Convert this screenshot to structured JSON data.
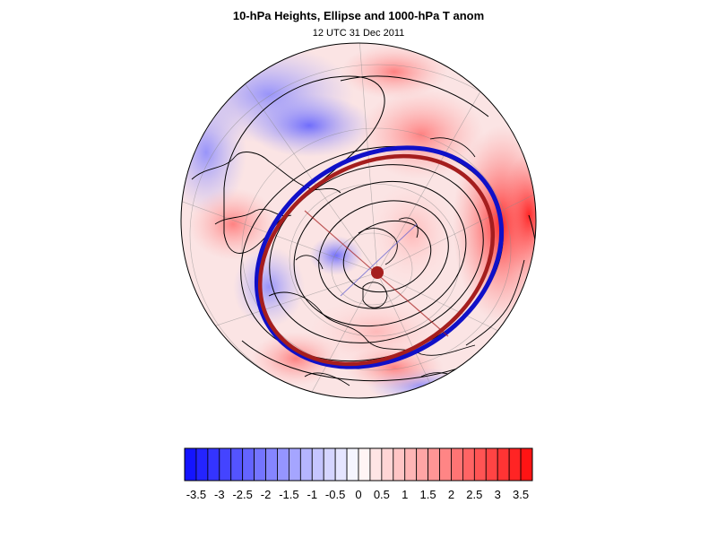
{
  "title": "10-hPa Heights, Ellipse and 1000-hPa T anom",
  "subtitle": "12 UTC 31 Dec 2011",
  "colors": {
    "ellipse_observed": "#1010c8",
    "ellipse_fit": "#a51e1e",
    "negative_max": "#1414ff",
    "positive_max": "#ff1414",
    "contour": "#000000"
  },
  "colorbar": {
    "labels": [
      "-3.5",
      "-3",
      "-2.5",
      "-2",
      "-1.5",
      "-1",
      "-0.5",
      "0",
      "0.5",
      "1",
      "1.5",
      "2",
      "2.5",
      "3",
      "3.5"
    ],
    "bin_count": 30
  }
}
